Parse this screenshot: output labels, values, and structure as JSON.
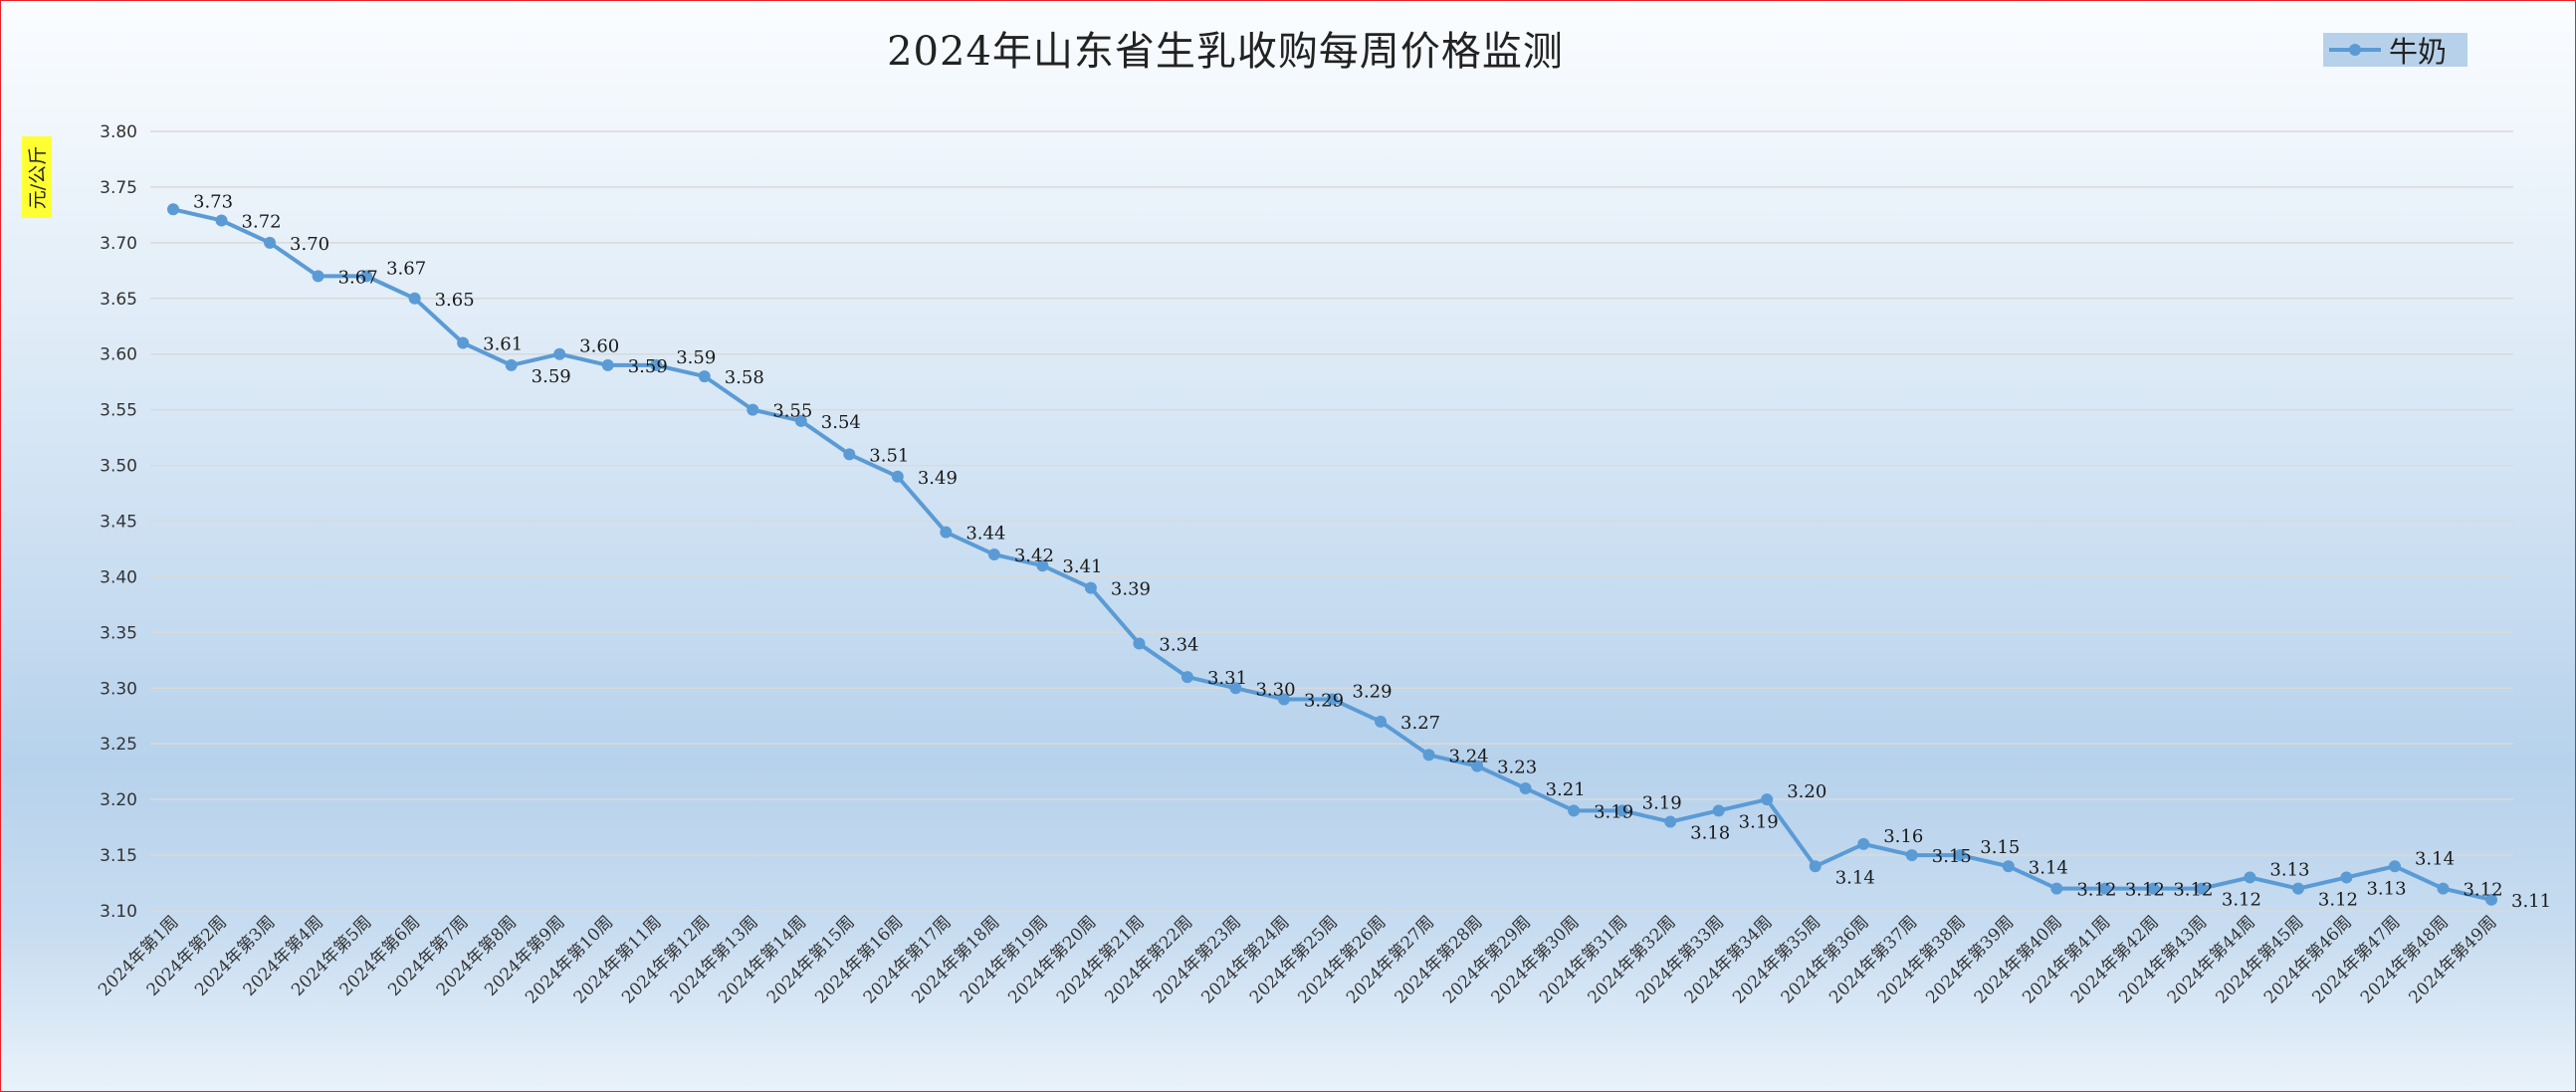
{
  "chart_data": {
    "type": "line",
    "title": "2024年山东省生乳收购每周价格监测",
    "ylabel": "元/公斤",
    "xlabel": "",
    "ylim": [
      3.1,
      3.8
    ],
    "y_ticks": [
      "3.10",
      "3.15",
      "3.20",
      "3.25",
      "3.30",
      "3.35",
      "3.40",
      "3.45",
      "3.50",
      "3.55",
      "3.60",
      "3.65",
      "3.70",
      "3.75",
      "3.80"
    ],
    "grid": true,
    "legend_position": "top-right",
    "series_color": "#5b9bd5",
    "categories": [
      "2024年第1周",
      "2024年第2周",
      "2024年第3周",
      "2024年第4周",
      "2024年第5周",
      "2024年第6周",
      "2024年第7周",
      "2024年第8周",
      "2024年第9周",
      "2024年第10周",
      "2024年第11周",
      "2024年第12周",
      "2024年第13周",
      "2024年第14周",
      "2024年第15周",
      "2024年第16周",
      "2024年第17周",
      "2024年第18周",
      "2024年第19周",
      "2024年第20周",
      "2024年第21周",
      "2024年第22周",
      "2024年第23周",
      "2024年第24周",
      "2024年第25周",
      "2024年第26周",
      "2024年第27周",
      "2024年第28周",
      "2024年第29周",
      "2024年第30周",
      "2024年第31周",
      "2024年第32周",
      "2024年第33周",
      "2024年第34周",
      "2024年第35周",
      "2024年第36周",
      "2024年第37周",
      "2024年第38周",
      "2024年第39周",
      "2024年第40周",
      "2024年第41周",
      "2024年第42周",
      "2024年第43周",
      "2024年第44周",
      "2024年第45周",
      "2024年第46周",
      "2024年第47周",
      "2024年第48周",
      "2024年第49周"
    ],
    "series": [
      {
        "name": "牛奶",
        "values": [
          3.73,
          3.72,
          3.7,
          3.67,
          3.67,
          3.65,
          3.61,
          3.59,
          3.6,
          3.59,
          3.59,
          3.58,
          3.55,
          3.54,
          3.51,
          3.49,
          3.44,
          3.42,
          3.41,
          3.39,
          3.34,
          3.31,
          3.3,
          3.29,
          3.29,
          3.27,
          3.24,
          3.23,
          3.21,
          3.19,
          3.19,
          3.18,
          3.19,
          3.2,
          3.14,
          3.16,
          3.15,
          3.15,
          3.14,
          3.12,
          3.12,
          3.12,
          3.12,
          3.13,
          3.12,
          3.13,
          3.14,
          3.12,
          3.11
        ],
        "labels": [
          "3.73",
          "3.72",
          "3.70",
          "3.67",
          "3.67",
          "3.65",
          "3.61",
          "3.59",
          "3.60",
          "3.59",
          "3.59",
          "3.58",
          "3.55",
          "3.54",
          "3.51",
          "3.49",
          "3.44",
          "3.42",
          "3.41",
          "3.39",
          "3.34",
          "3.31",
          "3.30",
          "3.29",
          "3.29",
          "3.27",
          "3.24",
          "3.23",
          "3.21",
          "3.19",
          "3.19",
          "3.18",
          "3.19",
          "3.20",
          "3.14",
          "3.16",
          "3.15",
          "3.15",
          "3.14",
          "3.12",
          "3.12",
          "3.12",
          "3.12",
          "3.13",
          "3.12",
          "3.13",
          "3.14",
          "3.12",
          "3.11"
        ]
      }
    ]
  }
}
